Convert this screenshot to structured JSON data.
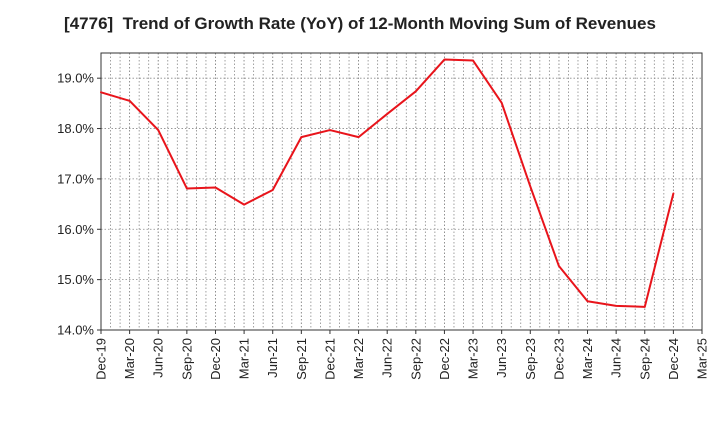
{
  "chart_data": {
    "type": "line",
    "title": "[4776]  Trend of Growth Rate (YoY) of 12-Month Moving Sum of Revenues",
    "xlabel": "",
    "ylabel": "",
    "x_tick_labels": [
      "Dec-19",
      "Mar-20",
      "Jun-20",
      "Sep-20",
      "Dec-20",
      "Mar-21",
      "Jun-21",
      "Sep-21",
      "Dec-21",
      "Mar-22",
      "Jun-22",
      "Sep-22",
      "Dec-22",
      "Mar-23",
      "Jun-23",
      "Sep-23",
      "Dec-23",
      "Mar-24",
      "Jun-24",
      "Sep-24",
      "Dec-24",
      "Mar-25"
    ],
    "y_tick_labels": [
      "14.0%",
      "15.0%",
      "16.0%",
      "17.0%",
      "18.0%",
      "19.0%"
    ],
    "ylim": [
      14.0,
      19.5
    ],
    "grid": true,
    "legend": "none",
    "series": [
      {
        "color": "#e8141b",
        "points": [
          {
            "x": "Dec-19",
            "y": 18.72
          },
          {
            "x": "Mar-20",
            "y": 18.55
          },
          {
            "x": "Jun-20",
            "y": 17.97
          },
          {
            "x": "Sep-20",
            "y": 16.81
          },
          {
            "x": "Dec-20",
            "y": 16.83
          },
          {
            "x": "Mar-21",
            "y": 16.49
          },
          {
            "x": "Jun-21",
            "y": 16.78
          },
          {
            "x": "Sep-21",
            "y": 17.83
          },
          {
            "x": "Dec-21",
            "y": 17.97
          },
          {
            "x": "Mar-22",
            "y": 17.83
          },
          {
            "x": "Jun-22",
            "y": 18.29
          },
          {
            "x": "Sep-22",
            "y": 18.74
          },
          {
            "x": "Dec-22",
            "y": 19.37
          },
          {
            "x": "Mar-23",
            "y": 19.35
          },
          {
            "x": "Jun-23",
            "y": 18.51
          },
          {
            "x": "Sep-23",
            "y": 16.85
          },
          {
            "x": "Dec-23",
            "y": 15.27
          },
          {
            "x": "Mar-24",
            "y": 14.57
          },
          {
            "x": "Jun-24",
            "y": 14.48
          },
          {
            "x": "Sep-24",
            "y": 14.46
          },
          {
            "x": "Dec-24",
            "y": 16.71
          }
        ]
      }
    ]
  }
}
